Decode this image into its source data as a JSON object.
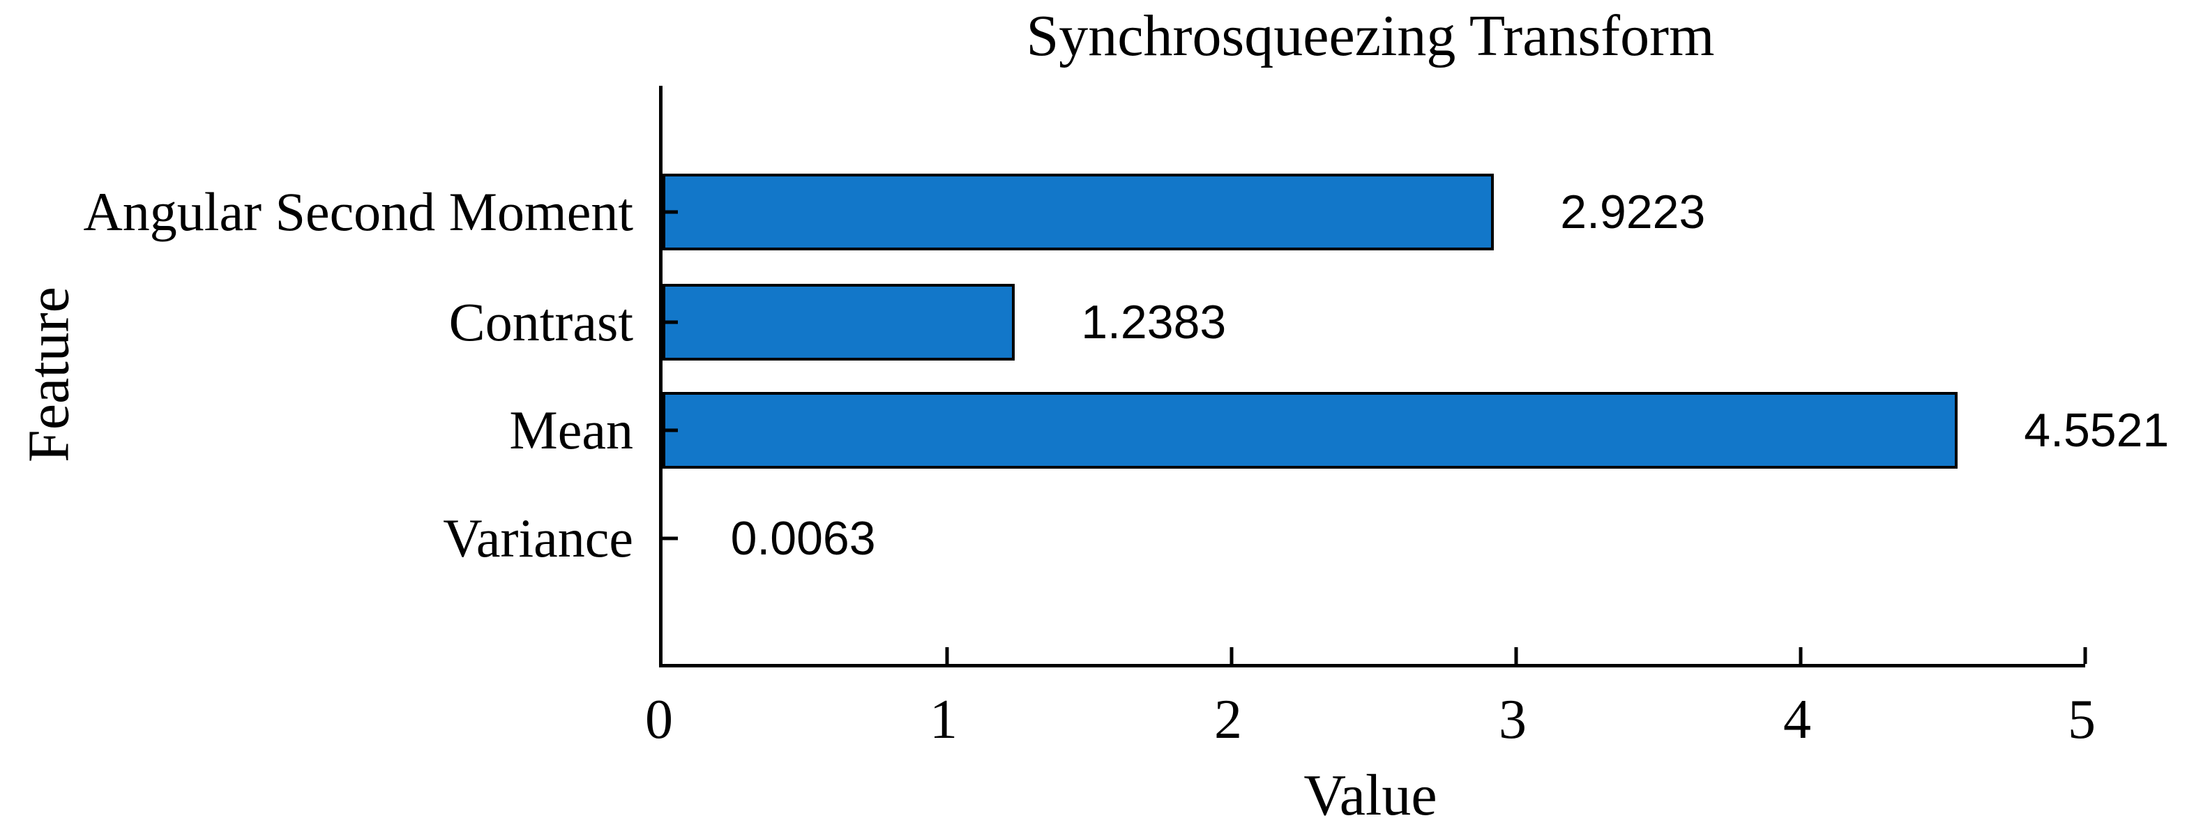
{
  "chart_data": {
    "type": "bar",
    "orientation": "horizontal",
    "title": "Synchrosqueezing Transform",
    "xlabel": "Value",
    "ylabel": "Feature",
    "categories": [
      "Angular Second Moment",
      "Contrast",
      "Mean",
      "Variance"
    ],
    "values": [
      2.9223,
      1.2383,
      4.5521,
      0.0063
    ],
    "value_labels": [
      "2.9223",
      "1.2383",
      "4.5521",
      "0.0063"
    ],
    "xlim": [
      0,
      5
    ],
    "xticks": [
      0,
      1,
      2,
      3,
      4,
      5
    ],
    "grid": false,
    "legend": "none",
    "tick_direction": "in",
    "bar_color": "#1277C9",
    "bar_edge_color": "#000000",
    "axis_color": "#000000",
    "text_color": "#000000"
  }
}
